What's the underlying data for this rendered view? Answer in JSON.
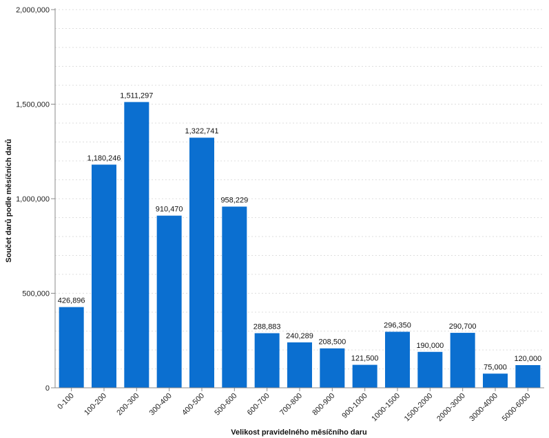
{
  "chart_data": {
    "type": "bar",
    "xlabel": "Velikost pravidelného měsíčního daru",
    "ylabel": "Součet darů podle měsíčních darů",
    "categories": [
      "0-100",
      "100-200",
      "200-300",
      "300-400",
      "400-500",
      "500-600",
      "600-700",
      "700-800",
      "800-900",
      "900-1000",
      "1000-1500",
      "1500-2000",
      "2000-3000",
      "3000-4000",
      "5000-6000"
    ],
    "values": [
      426896,
      1180246,
      1511297,
      910470,
      1322741,
      958229,
      288883,
      240289,
      208500,
      121500,
      296350,
      190000,
      290700,
      75000,
      120000
    ],
    "value_labels": [
      "426,896",
      "1,180,246",
      "1,511,297",
      "910,470",
      "1,322,741",
      "958,229",
      "288,883",
      "240,289",
      "208,500",
      "121,500",
      "296,350",
      "190,000",
      "290,700",
      "75,000",
      "120,000"
    ],
    "ylim": [
      0,
      2000000
    ],
    "yticks": [
      0,
      500000,
      1000000,
      1500000,
      2000000
    ],
    "ytick_labels": [
      "0",
      "500,000",
      "1,000,000",
      "1,500,000",
      "2,000,000"
    ],
    "grid": true,
    "bar_color": "#0b6fd0",
    "grid_color": "#dddddd",
    "axis_color": "#888888"
  }
}
